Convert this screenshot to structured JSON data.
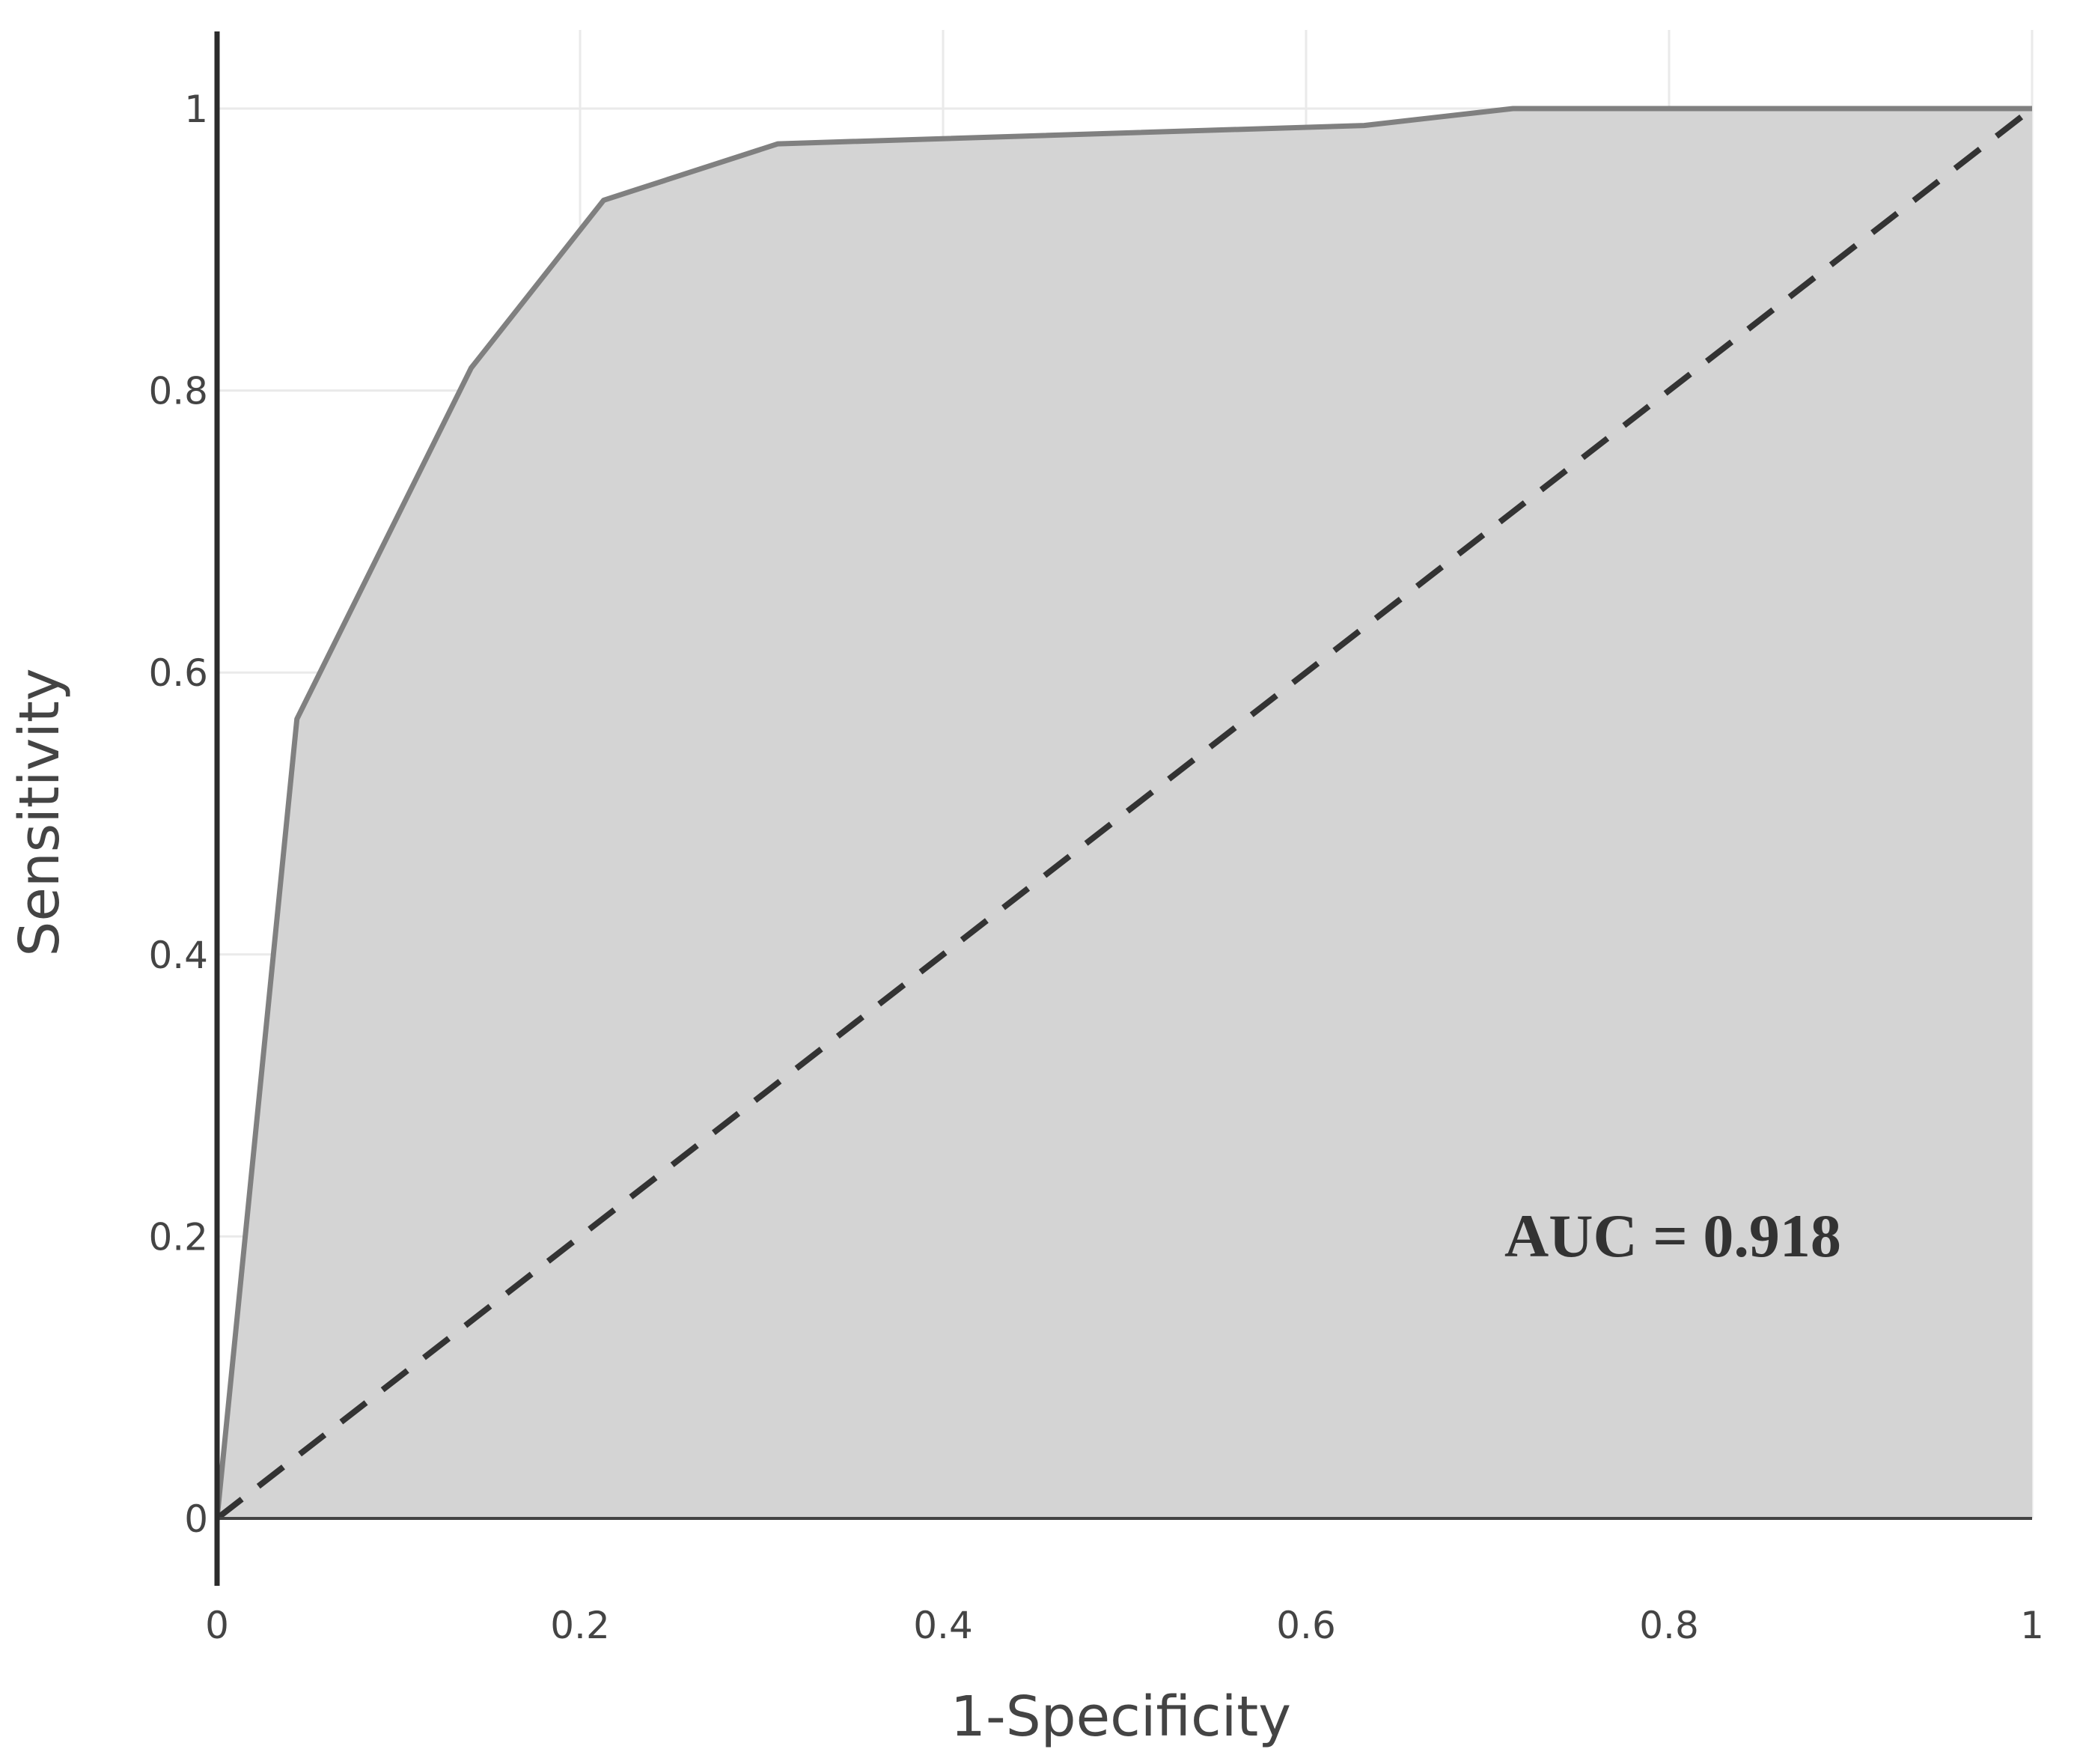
{
  "chart_data": {
    "type": "area",
    "title": "",
    "xlabel": "1-Specificity",
    "ylabel": "Sensitivity",
    "xlim": [
      0,
      1
    ],
    "ylim": [
      0,
      1
    ],
    "grid": true,
    "x_ticks": [
      "0",
      "0.2",
      "0.4",
      "0.6",
      "0.8",
      "1"
    ],
    "y_ticks": [
      "0",
      "0.2",
      "0.4",
      "0.6",
      "0.8",
      "1"
    ],
    "series": [
      {
        "kind": "roc-curve",
        "x": [
          0,
          0.044,
          0.14,
          0.213,
          0.309,
          0.632,
          0.714,
          1.0
        ],
        "y": [
          0,
          0.567,
          0.816,
          0.935,
          0.975,
          0.988,
          1.0,
          1.0
        ]
      },
      {
        "kind": "reference-diagonal",
        "x": [
          0,
          1
        ],
        "y": [
          0,
          1
        ]
      }
    ],
    "annotation": "AUC = 0.918",
    "colors": {
      "fill": "#d4d4d4",
      "curve": "#808080",
      "diagonal": "#333333",
      "axis": "#2b2b2b"
    }
  }
}
